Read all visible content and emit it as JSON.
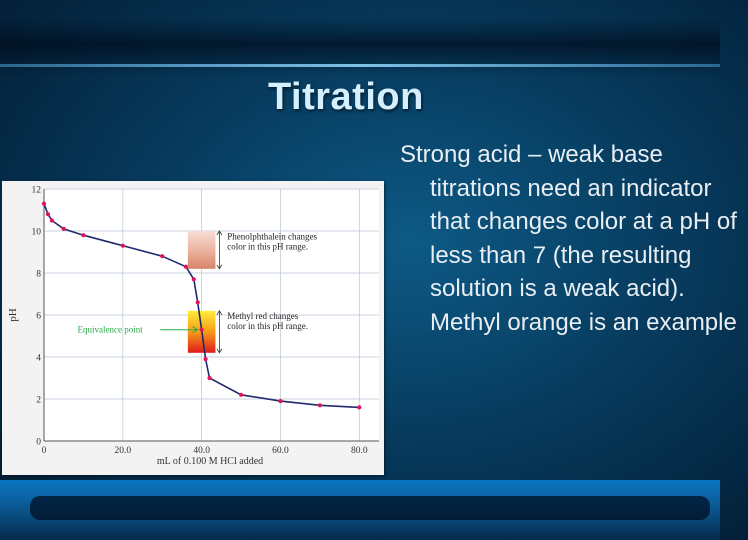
{
  "slide": {
    "title": "Titration",
    "body": "Strong acid – weak base titrations need an indicator that changes color at a pH of less than 7 (the resulting solution is a weak acid).  Methyl orange is an example"
  },
  "chart_data": {
    "type": "line",
    "title": "",
    "xlabel": "mL of 0.100 M HCl added",
    "ylabel": "pH",
    "xlim": [
      0,
      85
    ],
    "ylim": [
      0,
      12
    ],
    "x_ticks": [
      "0",
      "20.0",
      "40.0",
      "60.0",
      "80.0"
    ],
    "y_ticks": [
      "0",
      "2",
      "4",
      "6",
      "8",
      "10",
      "12"
    ],
    "grid": true,
    "series": [
      {
        "name": "",
        "x": [
          0,
          1,
          2,
          5,
          10,
          20,
          30,
          36,
          38,
          39,
          40,
          41,
          42,
          50,
          60,
          70,
          80
        ],
        "y": [
          11.3,
          10.8,
          10.5,
          10.1,
          9.8,
          9.3,
          8.8,
          8.3,
          7.7,
          6.6,
          5.3,
          3.9,
          3.0,
          2.2,
          1.9,
          1.7,
          1.6
        ],
        "color": "#e0135a"
      }
    ],
    "annotations": {
      "phenolphthalein": {
        "label_line1": "Phenolphthalein changes",
        "label_line2": "color in this pH range.",
        "range": [
          8.2,
          10.0
        ]
      },
      "methyl_red": {
        "label_line1": "Methyl red changes",
        "label_line2": "color in this pH range.",
        "range": [
          4.2,
          6.2
        ]
      },
      "equivalence": {
        "label": "Equivalence point",
        "x": 40,
        "y": 5.3
      }
    },
    "colors": {
      "curve": "#1e2a6b",
      "points": "#e0135a",
      "equivalence": "#2aa84a"
    }
  }
}
